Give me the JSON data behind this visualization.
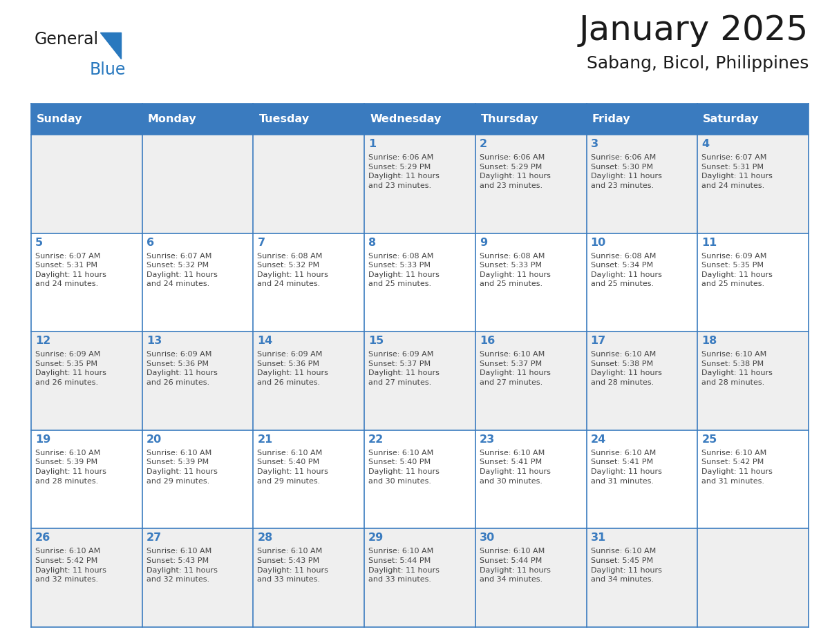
{
  "title": "January 2025",
  "subtitle": "Sabang, Bicol, Philippines",
  "days_of_week": [
    "Sunday",
    "Monday",
    "Tuesday",
    "Wednesday",
    "Thursday",
    "Friday",
    "Saturday"
  ],
  "header_bg": "#3a7bbf",
  "header_text": "#ffffff",
  "cell_bg_odd": "#efefef",
  "cell_bg_even": "#ffffff",
  "border_color": "#3a7bbf",
  "day_num_color": "#3a7bbf",
  "text_color": "#444444",
  "logo_general_color": "#1a1a1a",
  "logo_blue_color": "#2878be",
  "title_color": "#1a1a1a",
  "weeks": [
    [
      {
        "day": null,
        "info": null
      },
      {
        "day": null,
        "info": null
      },
      {
        "day": null,
        "info": null
      },
      {
        "day": 1,
        "info": "Sunrise: 6:06 AM\nSunset: 5:29 PM\nDaylight: 11 hours\nand 23 minutes."
      },
      {
        "day": 2,
        "info": "Sunrise: 6:06 AM\nSunset: 5:29 PM\nDaylight: 11 hours\nand 23 minutes."
      },
      {
        "day": 3,
        "info": "Sunrise: 6:06 AM\nSunset: 5:30 PM\nDaylight: 11 hours\nand 23 minutes."
      },
      {
        "day": 4,
        "info": "Sunrise: 6:07 AM\nSunset: 5:31 PM\nDaylight: 11 hours\nand 24 minutes."
      }
    ],
    [
      {
        "day": 5,
        "info": "Sunrise: 6:07 AM\nSunset: 5:31 PM\nDaylight: 11 hours\nand 24 minutes."
      },
      {
        "day": 6,
        "info": "Sunrise: 6:07 AM\nSunset: 5:32 PM\nDaylight: 11 hours\nand 24 minutes."
      },
      {
        "day": 7,
        "info": "Sunrise: 6:08 AM\nSunset: 5:32 PM\nDaylight: 11 hours\nand 24 minutes."
      },
      {
        "day": 8,
        "info": "Sunrise: 6:08 AM\nSunset: 5:33 PM\nDaylight: 11 hours\nand 25 minutes."
      },
      {
        "day": 9,
        "info": "Sunrise: 6:08 AM\nSunset: 5:33 PM\nDaylight: 11 hours\nand 25 minutes."
      },
      {
        "day": 10,
        "info": "Sunrise: 6:08 AM\nSunset: 5:34 PM\nDaylight: 11 hours\nand 25 minutes."
      },
      {
        "day": 11,
        "info": "Sunrise: 6:09 AM\nSunset: 5:35 PM\nDaylight: 11 hours\nand 25 minutes."
      }
    ],
    [
      {
        "day": 12,
        "info": "Sunrise: 6:09 AM\nSunset: 5:35 PM\nDaylight: 11 hours\nand 26 minutes."
      },
      {
        "day": 13,
        "info": "Sunrise: 6:09 AM\nSunset: 5:36 PM\nDaylight: 11 hours\nand 26 minutes."
      },
      {
        "day": 14,
        "info": "Sunrise: 6:09 AM\nSunset: 5:36 PM\nDaylight: 11 hours\nand 26 minutes."
      },
      {
        "day": 15,
        "info": "Sunrise: 6:09 AM\nSunset: 5:37 PM\nDaylight: 11 hours\nand 27 minutes."
      },
      {
        "day": 16,
        "info": "Sunrise: 6:10 AM\nSunset: 5:37 PM\nDaylight: 11 hours\nand 27 minutes."
      },
      {
        "day": 17,
        "info": "Sunrise: 6:10 AM\nSunset: 5:38 PM\nDaylight: 11 hours\nand 28 minutes."
      },
      {
        "day": 18,
        "info": "Sunrise: 6:10 AM\nSunset: 5:38 PM\nDaylight: 11 hours\nand 28 minutes."
      }
    ],
    [
      {
        "day": 19,
        "info": "Sunrise: 6:10 AM\nSunset: 5:39 PM\nDaylight: 11 hours\nand 28 minutes."
      },
      {
        "day": 20,
        "info": "Sunrise: 6:10 AM\nSunset: 5:39 PM\nDaylight: 11 hours\nand 29 minutes."
      },
      {
        "day": 21,
        "info": "Sunrise: 6:10 AM\nSunset: 5:40 PM\nDaylight: 11 hours\nand 29 minutes."
      },
      {
        "day": 22,
        "info": "Sunrise: 6:10 AM\nSunset: 5:40 PM\nDaylight: 11 hours\nand 30 minutes."
      },
      {
        "day": 23,
        "info": "Sunrise: 6:10 AM\nSunset: 5:41 PM\nDaylight: 11 hours\nand 30 minutes."
      },
      {
        "day": 24,
        "info": "Sunrise: 6:10 AM\nSunset: 5:41 PM\nDaylight: 11 hours\nand 31 minutes."
      },
      {
        "day": 25,
        "info": "Sunrise: 6:10 AM\nSunset: 5:42 PM\nDaylight: 11 hours\nand 31 minutes."
      }
    ],
    [
      {
        "day": 26,
        "info": "Sunrise: 6:10 AM\nSunset: 5:42 PM\nDaylight: 11 hours\nand 32 minutes."
      },
      {
        "day": 27,
        "info": "Sunrise: 6:10 AM\nSunset: 5:43 PM\nDaylight: 11 hours\nand 32 minutes."
      },
      {
        "day": 28,
        "info": "Sunrise: 6:10 AM\nSunset: 5:43 PM\nDaylight: 11 hours\nand 33 minutes."
      },
      {
        "day": 29,
        "info": "Sunrise: 6:10 AM\nSunset: 5:44 PM\nDaylight: 11 hours\nand 33 minutes."
      },
      {
        "day": 30,
        "info": "Sunrise: 6:10 AM\nSunset: 5:44 PM\nDaylight: 11 hours\nand 34 minutes."
      },
      {
        "day": 31,
        "info": "Sunrise: 6:10 AM\nSunset: 5:45 PM\nDaylight: 11 hours\nand 34 minutes."
      },
      {
        "day": null,
        "info": null
      }
    ]
  ]
}
